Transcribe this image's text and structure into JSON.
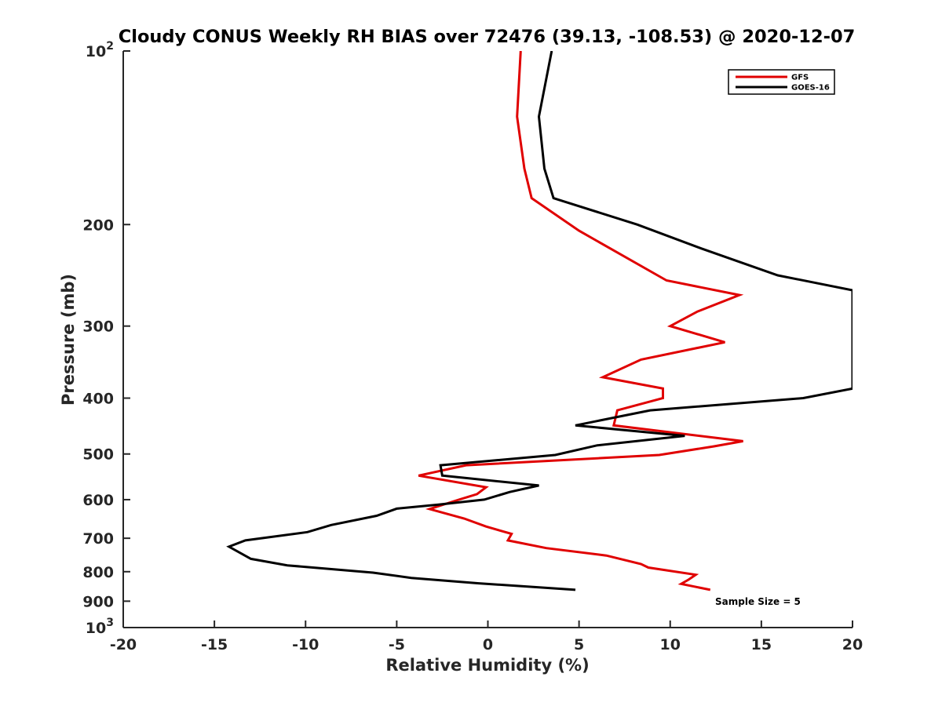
{
  "chart_data": {
    "type": "line",
    "title": "Cloudy CONUS Weekly RH BIAS over 72476 (39.13, -108.53) @ 2020-12-07",
    "xlabel": "Relative Humidity (%)",
    "ylabel": "Pressure (mb)",
    "xlim": [
      -20,
      20
    ],
    "ylim": [
      100,
      1000
    ],
    "y_scale": "log",
    "y_reversed": true,
    "grid": false,
    "legend_position": "top-right",
    "x_ticks": [
      "-20",
      "-15",
      "-10",
      "-5",
      "0",
      "5",
      "10",
      "15",
      "20"
    ],
    "y_ticks": [
      {
        "value": 100,
        "base": "10",
        "exp": "2"
      },
      {
        "value": 200,
        "label": "200"
      },
      {
        "value": 300,
        "label": "300"
      },
      {
        "value": 400,
        "label": "400"
      },
      {
        "value": 500,
        "label": "500"
      },
      {
        "value": 600,
        "label": "600"
      },
      {
        "value": 700,
        "label": "700"
      },
      {
        "value": 800,
        "label": "800"
      },
      {
        "value": 900,
        "label": "900"
      },
      {
        "value": 1000,
        "base": "10",
        "exp": "3"
      }
    ],
    "annotation": "Sample Size = 5",
    "series": [
      {
        "name": "GFS",
        "color": "#e00000",
        "points": [
          [
            1.8,
            100
          ],
          [
            1.6,
            130
          ],
          [
            2.0,
            160
          ],
          [
            2.4,
            180
          ],
          [
            5.0,
            205
          ],
          [
            9.8,
            250
          ],
          [
            13.8,
            265
          ],
          [
            11.5,
            283
          ],
          [
            10.0,
            300
          ],
          [
            13.0,
            320
          ],
          [
            8.4,
            343
          ],
          [
            6.3,
            368
          ],
          [
            9.6,
            385
          ],
          [
            9.6,
            400
          ],
          [
            7.1,
            420
          ],
          [
            6.9,
            446
          ],
          [
            14.0,
            475
          ],
          [
            12.4,
            485
          ],
          [
            9.4,
            502
          ],
          [
            -1.2,
            523
          ],
          [
            -3.8,
            545
          ],
          [
            -0.1,
            571
          ],
          [
            -0.6,
            587
          ],
          [
            -1.8,
            603
          ],
          [
            -3.2,
            623
          ],
          [
            -1.3,
            647
          ],
          [
            -0.1,
            668
          ],
          [
            1.3,
            688
          ],
          [
            1.1,
            706
          ],
          [
            3.2,
            728
          ],
          [
            6.5,
            750
          ],
          [
            8.4,
            776
          ],
          [
            8.8,
            787
          ],
          [
            11.4,
            810
          ],
          [
            11.0,
            826
          ],
          [
            10.6,
            840
          ],
          [
            12.2,
            860
          ]
        ]
      },
      {
        "name": "GOES-16",
        "color": "#000000",
        "points": [
          [
            3.5,
            100
          ],
          [
            2.8,
            130
          ],
          [
            3.1,
            160
          ],
          [
            3.6,
            180
          ],
          [
            8.2,
            200
          ],
          [
            11.7,
            220
          ],
          [
            15.9,
            245
          ],
          [
            20.0,
            260
          ],
          [
            20.0,
            385
          ],
          [
            17.3,
            400
          ],
          [
            8.9,
            420
          ],
          [
            4.8,
            446
          ],
          [
            10.8,
            465
          ],
          [
            6.0,
            483
          ],
          [
            3.7,
            502
          ],
          [
            -2.6,
            523
          ],
          [
            -2.5,
            545
          ],
          [
            2.8,
            567
          ],
          [
            1.2,
            582
          ],
          [
            -0.2,
            600
          ],
          [
            -2.7,
            612
          ],
          [
            -5.0,
            622
          ],
          [
            -6.1,
            640
          ],
          [
            -8.6,
            664
          ],
          [
            -9.9,
            683
          ],
          [
            -13.3,
            706
          ],
          [
            -14.2,
            724
          ],
          [
            -13.0,
            760
          ],
          [
            -11.0,
            780
          ],
          [
            -6.3,
            803
          ],
          [
            -4.2,
            820
          ],
          [
            -0.5,
            838
          ],
          [
            4.8,
            860
          ]
        ]
      }
    ]
  }
}
